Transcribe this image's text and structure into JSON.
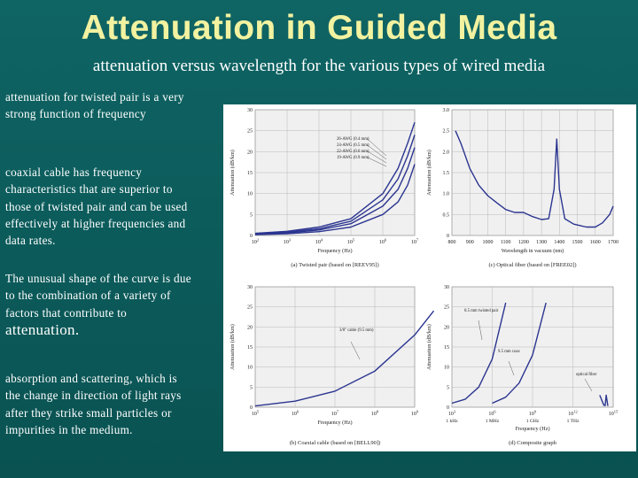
{
  "title": "Attenuation in Guided Media",
  "subtitle": "attenuation versus wavelength for the various types of wired media",
  "bullets": {
    "b1": "attenuation for twisted pair is a very strong function of frequency",
    "b2": "coaxial cable has frequency characteristics that are superior to those of twisted pair and can be used effectively at higher frequencies and data rates.",
    "b3": "The unusual shape of the curve is due to the combination of a variety of factors that contribute to",
    "b3_tail": "attenuation.",
    "b4": "absorption and scattering, which is the change in direction of light rays after they strike small particles or impurities in the medium."
  },
  "colors": {
    "background": "#0c5a5a",
    "title": "#f2f2a0",
    "curve": "#2b3590"
  },
  "chart_data": [
    {
      "type": "line",
      "caption": "(a) Twisted pair (based on [REEV95])",
      "ylabel": "Attenuation (dB/km)",
      "xlabel": "Frequency (Hz)",
      "y_ticks": [
        "30",
        "25",
        "20",
        "15",
        "10",
        "5",
        "0"
      ],
      "x_ticks": [
        "10^2",
        "10^3",
        "10^4",
        "10^5",
        "10^6",
        "10^7"
      ],
      "ylim": [
        0,
        30
      ],
      "xscale": "log",
      "series": [
        {
          "name": "26-AWG (0.4 mm)",
          "x": [
            100,
            1000,
            10000,
            100000,
            1000000,
            3000000,
            6000000,
            10000000
          ],
          "y": [
            0.5,
            1,
            2,
            4,
            10,
            16,
            22,
            27
          ]
        },
        {
          "name": "24-AWG (0.5 mm)",
          "x": [
            100,
            1000,
            10000,
            100000,
            1000000,
            3000000,
            6000000,
            10000000
          ],
          "y": [
            0.4,
            0.8,
            1.6,
            3.4,
            8.5,
            13.5,
            19,
            24
          ]
        },
        {
          "name": "22-AWG (0.6 mm)",
          "x": [
            100,
            1000,
            10000,
            100000,
            1000000,
            3000000,
            6000000,
            10000000
          ],
          "y": [
            0.3,
            0.6,
            1.3,
            2.8,
            7,
            11,
            16,
            21
          ]
        },
        {
          "name": "19-AWG (0.9 mm)",
          "x": [
            100,
            1000,
            10000,
            100000,
            1000000,
            3000000,
            6000000,
            10000000
          ],
          "y": [
            0.2,
            0.4,
            0.9,
            2,
            5,
            8,
            12,
            17
          ]
        }
      ]
    },
    {
      "type": "line",
      "caption": "(c) Optical fiber (based on [FREE02])",
      "ylabel": "Attenuation (dB/km)",
      "xlabel": "Wavelength in vacuum (nm)",
      "y_ticks": [
        "3.0",
        "2.5",
        "2.0",
        "1.5",
        "1.0",
        "0.5",
        "0"
      ],
      "x_ticks": [
        "800",
        "900",
        "1000",
        "1100",
        "1200",
        "1300",
        "1400",
        "1500",
        "1600",
        "1700"
      ],
      "ylim": [
        0,
        3.0
      ],
      "xlim": [
        800,
        1700
      ],
      "series": [
        {
          "x": [
            820,
            850,
            900,
            950,
            1000,
            1050,
            1100,
            1150,
            1200,
            1250,
            1300,
            1340,
            1370,
            1385,
            1400,
            1430,
            1480,
            1550,
            1600,
            1640,
            1680,
            1700
          ],
          "y": [
            2.5,
            2.2,
            1.6,
            1.2,
            0.95,
            0.78,
            0.62,
            0.55,
            0.55,
            0.45,
            0.38,
            0.4,
            1.1,
            2.3,
            1.1,
            0.4,
            0.27,
            0.2,
            0.2,
            0.3,
            0.5,
            0.7
          ]
        }
      ]
    },
    {
      "type": "line",
      "caption": "(b) Coaxial cable (based on [BELL90])",
      "ylabel": "Attenuation (dB/km)",
      "xlabel": "Frequency (Hz)",
      "y_ticks": [
        "30",
        "25",
        "20",
        "15",
        "10",
        "5",
        "0"
      ],
      "x_ticks": [
        "10^5",
        "10^6",
        "10^7",
        "10^8",
        "10^9"
      ],
      "ylim": [
        0,
        30
      ],
      "xscale": "log",
      "series": [
        {
          "name": "3/8\" cable (9.5 mm)",
          "x": [
            100000,
            1000000,
            10000000,
            100000000,
            1000000000,
            3000000000
          ],
          "y": [
            0.3,
            1.5,
            4,
            9,
            18,
            24
          ]
        }
      ]
    },
    {
      "type": "line",
      "caption": "(d) Composite graph",
      "ylabel": "Attenuation (dB/km)",
      "xlabel": "Frequency (Hz)",
      "y_ticks": [
        "30",
        "25",
        "20",
        "15",
        "10",
        "5",
        "0"
      ],
      "x_ticks": [
        "10^3",
        "10^6",
        "10^9",
        "10^12",
        "10^15"
      ],
      "x_tick_sublabels": [
        "1 kHz",
        "1 MHz",
        "1 GHz",
        "1 THz"
      ],
      "ylim": [
        0,
        30
      ],
      "xscale": "log",
      "series": [
        {
          "name": "0.5 mm twisted pair",
          "x": [
            1000,
            10000,
            100000,
            1000000,
            10000000
          ],
          "y": [
            1,
            2,
            5,
            12,
            26
          ]
        },
        {
          "name": "9.5 mm coax",
          "x": [
            1000000,
            10000000,
            100000000,
            1000000000,
            10000000000
          ],
          "y": [
            1,
            2.5,
            6,
            13,
            26
          ]
        },
        {
          "name": "optical fiber",
          "x": [
            100000000000000.0,
            200000000000000.0,
            250000000000000.0,
            300000000000000.0,
            400000000000000.0
          ],
          "y": [
            3,
            0.5,
            0.4,
            3,
            0.3
          ]
        }
      ]
    }
  ]
}
